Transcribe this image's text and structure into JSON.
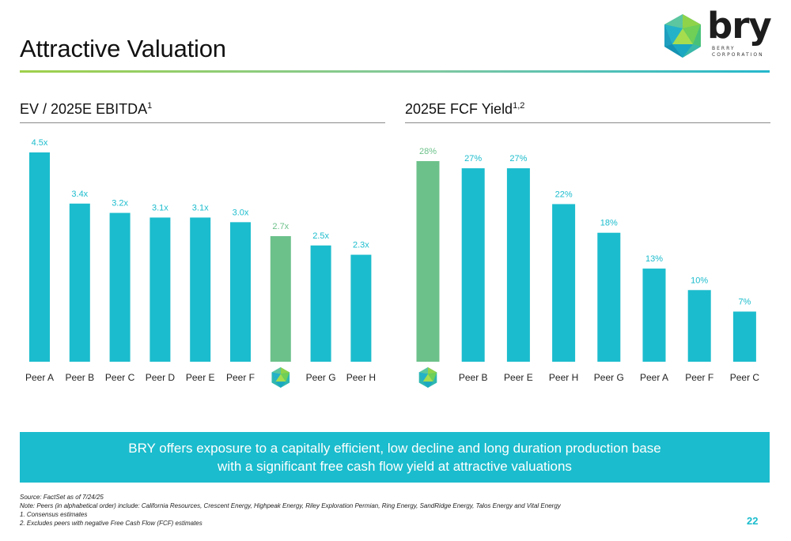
{
  "header": {
    "title": "Attractive Valuation"
  },
  "logo": {
    "word": "bry",
    "sub_line1": "BERRY",
    "sub_line2": "CORPORATION"
  },
  "colors": {
    "peer": "#1bbccd",
    "bry": "#6cc18a"
  },
  "charts": [
    {
      "title": "EV / 2025E EBITDA",
      "title_sup": "1"
    },
    {
      "title": "2025E FCF Yield",
      "title_sup": "1,2"
    }
  ],
  "chart_data": [
    {
      "type": "bar",
      "title": "EV / 2025E EBITDA",
      "categories": [
        "Peer A",
        "Peer B",
        "Peer C",
        "Peer D",
        "Peer E",
        "Peer F",
        "BRY",
        "Peer G",
        "Peer H"
      ],
      "values": [
        4.5,
        3.4,
        3.2,
        3.1,
        3.1,
        3.0,
        2.7,
        2.5,
        2.3
      ],
      "labels": [
        "4.5x",
        "3.4x",
        "3.2x",
        "3.1x",
        "3.1x",
        "3.0x",
        "2.7x",
        "2.5x",
        "2.3x"
      ],
      "highlight": "BRY",
      "ylim": [
        0,
        4.5
      ]
    },
    {
      "type": "bar",
      "title": "2025E FCF Yield",
      "categories": [
        "BRY",
        "Peer B",
        "Peer E",
        "Peer H",
        "Peer G",
        "Peer A",
        "Peer F",
        "Peer C"
      ],
      "values": [
        28,
        27,
        27,
        22,
        18,
        13,
        10,
        7
      ],
      "labels": [
        "28%",
        "27%",
        "27%",
        "22%",
        "18%",
        "13%",
        "10%",
        "7%"
      ],
      "highlight": "BRY",
      "ylim": [
        0,
        28
      ]
    }
  ],
  "callout": {
    "line1": "BRY offers exposure to a capitally efficient, low decline and long duration production base",
    "line2": "with a significant free cash flow yield at attractive valuations"
  },
  "footnotes": {
    "source": "Source: FactSet as of 7/24/25",
    "note": "Note: Peers (in alphabetical order) include: California Resources, Crescent Energy, Highpeak Energy, Riley Exploration Permian, Ring Energy, SandRidge Energy, Talos Energy and Vital Energy",
    "n1": "1.  Consensus estimates",
    "n2": "2.  Excludes peers with negative Free Cash Flow (FCF) estimates"
  },
  "page_number": "22"
}
